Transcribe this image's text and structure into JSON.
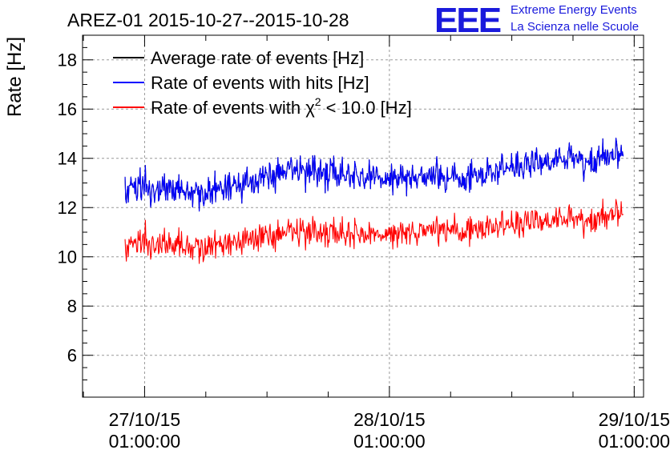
{
  "chart_data": {
    "type": "line",
    "title": "AREZ-01 2015-10-27--2015-10-28",
    "ylabel": "Rate [Hz]",
    "xlabel": "",
    "ylim": [
      4.3,
      19.0
    ],
    "y_ticks": [
      6,
      8,
      10,
      12,
      14,
      16,
      18
    ],
    "x_range": [
      "2015-10-26 18:55",
      "2015-10-29 01:55"
    ],
    "x_ticks": [
      {
        "x": "2015-10-27 01:00",
        "date": "27/10/15",
        "time": "01:00:00"
      },
      {
        "x": "2015-10-28 01:00",
        "date": "28/10/15",
        "time": "01:00:00"
      },
      {
        "x": "2015-10-29 01:00",
        "date": "29/10/15",
        "time": "01:00:00"
      }
    ],
    "grid": true,
    "legend_position": "top-left",
    "series": [
      {
        "name": "Average rate of events [Hz]",
        "label_prefix": "Average rate of events [Hz]",
        "color": "#000000",
        "x_range": [
          "2015-10-26 23:05",
          "2015-10-28 23:55"
        ],
        "values": [
          12.9,
          12.6,
          13.5,
          13.3,
          13.1,
          13.9,
          14.1
        ]
      },
      {
        "name": "Rate of events with hits [Hz]",
        "label_prefix": "Rate of events with hits [Hz]",
        "color": "#0000ff",
        "x_range": [
          "2015-10-26 23:05",
          "2015-10-28 23:55"
        ],
        "values": [
          12.9,
          12.6,
          13.5,
          13.3,
          13.1,
          13.9,
          14.1
        ]
      },
      {
        "name": "Rate of events with χ² < 10.0 [Hz]",
        "label_prefix": "Rate of events with χ",
        "label_sup": "2",
        "label_suffix": " < 10.0 [Hz]",
        "color": "#ff0000",
        "x_range": [
          "2015-10-26 23:05",
          "2015-10-28 23:55"
        ],
        "values": [
          10.6,
          10.4,
          11.0,
          11.0,
          11.0,
          11.5,
          11.7
        ]
      }
    ]
  },
  "logo": {
    "text": "EEE",
    "line1": "Extreme Energy Events",
    "line2": "La Scienza nelle Scuole",
    "color": "#1a1adc"
  }
}
